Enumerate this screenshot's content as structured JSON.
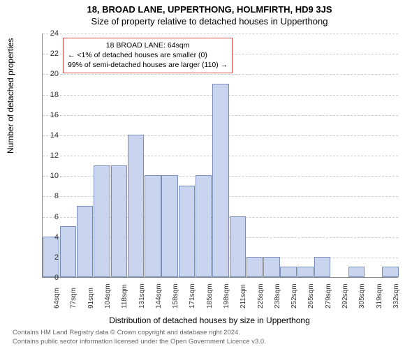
{
  "title_line1": "18, BROAD LANE, UPPERTHONG, HOLMFIRTH, HD9 3JS",
  "title_line2": "Size of property relative to detached houses in Upperthong",
  "ylabel": "Number of detached properties",
  "xlabel": "Distribution of detached houses by size in Upperthong",
  "chart": {
    "type": "bar",
    "ylim": [
      0,
      24
    ],
    "ytick_step": 2,
    "categories": [
      "64sqm",
      "77sqm",
      "91sqm",
      "104sqm",
      "118sqm",
      "131sqm",
      "144sqm",
      "158sqm",
      "171sqm",
      "185sqm",
      "198sqm",
      "211sqm",
      "225sqm",
      "238sqm",
      "252sqm",
      "265sqm",
      "279sqm",
      "292sqm",
      "305sqm",
      "319sqm",
      "332sqm"
    ],
    "values": [
      4,
      5,
      7,
      11,
      11,
      14,
      10,
      10,
      9,
      10,
      19,
      6,
      2,
      2,
      1,
      1,
      2,
      0,
      1,
      0,
      1
    ],
    "bar_fill": "#c9d4ee",
    "bar_border": "#7a8db8",
    "grid_color": "#cccccc",
    "axis_color": "#888888",
    "background": "#ffffff",
    "bar_width_ratio": 0.96,
    "label_fontsize": 11,
    "title_fontsize": 13
  },
  "annotation": {
    "line1": "18 BROAD LANE: 64sqm",
    "line2": "← <1% of detached houses are smaller (0)",
    "line3": "99% of semi-detached houses are larger (110) →",
    "border_color": "#d94a4a"
  },
  "footer_line1": "Contains HM Land Registry data © Crown copyright and database right 2024.",
  "footer_line2": "Contains public sector information licensed under the Open Government Licence v3.0."
}
